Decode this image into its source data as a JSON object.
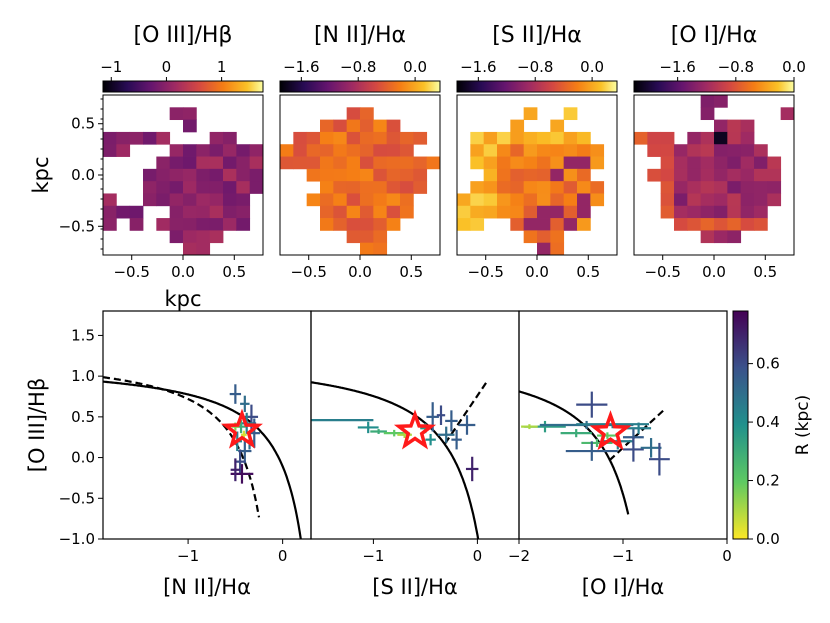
{
  "chart_data": {
    "maps": [
      {
        "title": "[O III]/Hβ",
        "cbar_ticks": [
          {
            "v": -1,
            "label": "−1"
          },
          {
            "v": 0,
            "label": "0"
          },
          {
            "v": 1,
            "label": "1"
          }
        ],
        "cbar_range": [
          -1.15,
          1.75
        ],
        "tint": "purple",
        "grid": [
          "............",
          ".....##.....",
          "......#.....",
          "#####...##..",
          "##...#######",
          "....########",
          "...#########",
          "...##########",
          "#..########.",
          "###..######.",
          "#.#.#######.",
          ".....####...",
          "......##...."
        ]
      },
      {
        "title": "[N II]/Hα",
        "cbar_ticks": [
          {
            "v": -1.6,
            "label": "−1.6"
          },
          {
            "v": -0.8,
            "label": "−0.8"
          },
          {
            "v": 0,
            "label": "0.0"
          }
        ],
        "cbar_range": [
          -1.9,
          0.35
        ],
        "tint": "orange",
        "grid": [
          "............",
          ".....##.....",
          "...######...",
          ".##########.",
          "##########..",
          "############",
          "..#########.",
          "...########.",
          "..########..",
          "...#######..",
          "...######...",
          ".....###....",
          "......##...."
        ]
      },
      {
        "title": "[S II]/Hα",
        "cbar_ticks": [
          {
            "v": -1.6,
            "label": "−1.6"
          },
          {
            "v": -0.8,
            "label": "−0.8"
          },
          {
            "v": 0,
            "label": "0.0"
          }
        ],
        "cbar_range": [
          -1.9,
          0.35
        ],
        "tint": "mixed",
        "grid": [
          "............",
          ".....#..#...",
          "....#..#....",
          ".#########..",
          ".##########.",
          ".##########.",
          "..########..",
          ".##########.",
          "###########.",
          "##########..",
          "##..######..",
          ".....###....",
          "......##...."
        ]
      },
      {
        "title": "[O I]/Hα",
        "cbar_ticks": [
          {
            "v": -1.6,
            "label": "−1.6"
          },
          {
            "v": -0.8,
            "label": "−0.8"
          },
          {
            "v": 0,
            "label": "0.0"
          }
        ],
        "cbar_range": [
          -2.2,
          0.0
        ],
        "tint": "mixed2",
        "grid": [
          ".....##.....",
          ".....#.....#",
          "......###...",
          "###.#####...",
          ".#########..",
          "..#########.",
          ".##########.",
          "..#########.",
          "..#########.",
          "..########..",
          "...#######..",
          ".....###....",
          "............"
        ]
      }
    ],
    "map_axes": {
      "xlim": [
        -0.78,
        0.78
      ],
      "ylim": [
        -0.78,
        0.78
      ],
      "ticks": [
        {
          "v": -0.5,
          "label": "−0.5"
        },
        {
          "v": 0.0,
          "label": "0.0"
        },
        {
          "v": 0.5,
          "label": "0.5"
        }
      ],
      "xlabel": "kpc",
      "ylabel": "kpc"
    },
    "bpt": [
      {
        "xlabel": "[N II]/Hα",
        "xlim": [
          -1.9,
          0.3
        ],
        "xticks": [
          {
            "v": -1,
            "label": "−1"
          },
          {
            "v": 0,
            "label": "0"
          }
        ],
        "star": [
          -0.43,
          0.33
        ],
        "points": [
          [
            -0.5,
            0.78,
            0.06,
            0.12,
            0.55
          ],
          [
            -0.4,
            0.66,
            0.05,
            0.1,
            0.5
          ],
          [
            -0.33,
            0.5,
            0.07,
            0.15,
            0.6
          ],
          [
            -0.38,
            0.42,
            0.1,
            0.13,
            0.45
          ],
          [
            -0.44,
            0.38,
            0.05,
            0.08,
            0.3
          ],
          [
            -0.3,
            0.3,
            0.06,
            0.18,
            0.55
          ],
          [
            -0.35,
            0.2,
            0.04,
            0.1,
            0.5
          ],
          [
            -0.48,
            0.2,
            0.05,
            0.12,
            0.45
          ],
          [
            -0.4,
            0.08,
            0.07,
            0.15,
            0.55
          ],
          [
            -0.45,
            -0.05,
            0.06,
            0.15,
            0.6
          ],
          [
            -0.43,
            -0.2,
            0.12,
            0.12,
            0.75
          ],
          [
            -0.5,
            -0.15,
            0.05,
            0.14,
            0.7
          ],
          [
            -0.5,
            0.38,
            0.04,
            0.05,
            0.15
          ],
          [
            -0.41,
            0.28,
            0.03,
            0.05,
            0.05
          ]
        ]
      },
      {
        "xlabel": "[S II]/Hα",
        "xlim": [
          -1.6,
          0.4
        ],
        "xticks": [
          {
            "v": -1,
            "label": "−1"
          },
          {
            "v": 0,
            "label": "0"
          }
        ],
        "star": [
          -0.6,
          0.32
        ],
        "points": [
          [
            -1.3,
            0.46,
            0.3,
            0.0,
            0.45
          ],
          [
            -1.05,
            0.37,
            0.1,
            0.07,
            0.4
          ],
          [
            -0.95,
            0.32,
            0.08,
            0.03,
            0.3
          ],
          [
            -0.8,
            0.3,
            0.1,
            0.04,
            0.2
          ],
          [
            -0.7,
            0.28,
            0.07,
            0.04,
            0.1
          ],
          [
            -0.5,
            0.36,
            0.05,
            0.06,
            0.35
          ],
          [
            -0.43,
            0.5,
            0.06,
            0.18,
            0.55
          ],
          [
            -0.35,
            0.52,
            0.04,
            0.12,
            0.6
          ],
          [
            -0.25,
            0.45,
            0.06,
            0.13,
            0.55
          ],
          [
            -0.3,
            0.28,
            0.08,
            0.1,
            0.5
          ],
          [
            -0.2,
            0.22,
            0.05,
            0.12,
            0.55
          ],
          [
            -0.1,
            0.4,
            0.08,
            0.12,
            0.55
          ],
          [
            -0.05,
            -0.14,
            0.06,
            0.15,
            0.7
          ],
          [
            -0.45,
            0.22,
            0.05,
            0.07,
            0.4
          ]
        ]
      },
      {
        "xlabel": "[O I]/Hα",
        "xlim": [
          -2.0,
          0.0
        ],
        "xticks": [
          {
            "v": -2,
            "label": "−2"
          },
          {
            "v": -1,
            "label": "−1"
          },
          {
            "v": 0,
            "label": "0"
          }
        ],
        "star": [
          -1.12,
          0.31
        ],
        "points": [
          [
            -1.3,
            0.65,
            0.15,
            0.16,
            0.6
          ],
          [
            -1.75,
            0.38,
            0.2,
            0.07,
            0.35
          ],
          [
            -1.35,
            0.4,
            0.45,
            0.05,
            0.5
          ],
          [
            -1.1,
            0.41,
            0.35,
            0.05,
            0.45
          ],
          [
            -1.45,
            0.3,
            0.15,
            0.05,
            0.3
          ],
          [
            -1.15,
            0.27,
            0.1,
            0.04,
            0.2
          ],
          [
            -1.25,
            0.18,
            0.15,
            0.05,
            0.25
          ],
          [
            -1.3,
            0.08,
            0.25,
            0.12,
            0.55
          ],
          [
            -1.05,
            0.2,
            0.15,
            0.1,
            0.45
          ],
          [
            -0.85,
            0.36,
            0.12,
            0.07,
            0.45
          ],
          [
            -0.9,
            0.25,
            0.1,
            0.1,
            0.55
          ],
          [
            -0.9,
            0.1,
            0.1,
            0.15,
            0.6
          ],
          [
            -0.73,
            0.12,
            0.1,
            0.12,
            0.5
          ],
          [
            -0.65,
            -0.02,
            0.1,
            0.2,
            0.6
          ],
          [
            -1.9,
            0.38,
            0.08,
            0.03,
            0.1
          ]
        ]
      }
    ],
    "bpt_ylim": [
      -1.0,
      1.8
    ],
    "bpt_yticks": [
      {
        "v": -1.0,
        "label": "−1.0"
      },
      {
        "v": -0.5,
        "label": "−0.5"
      },
      {
        "v": 0.0,
        "label": "0.0"
      },
      {
        "v": 0.5,
        "label": "0.5"
      },
      {
        "v": 1.0,
        "label": "1.0"
      },
      {
        "v": 1.5,
        "label": "1.5"
      }
    ],
    "bpt_ylabel": "[O III]/Hβ",
    "colorbar": {
      "label": "R (kpc)",
      "range": [
        0.0,
        0.78
      ],
      "ticks": [
        {
          "v": 0.0,
          "label": "0.0"
        },
        {
          "v": 0.2,
          "label": "0.2"
        },
        {
          "v": 0.4,
          "label": "0.4"
        },
        {
          "v": 0.6,
          "label": "0.6"
        }
      ]
    },
    "colors": {
      "star": "#ff1a1a",
      "curve": "#000000"
    }
  }
}
